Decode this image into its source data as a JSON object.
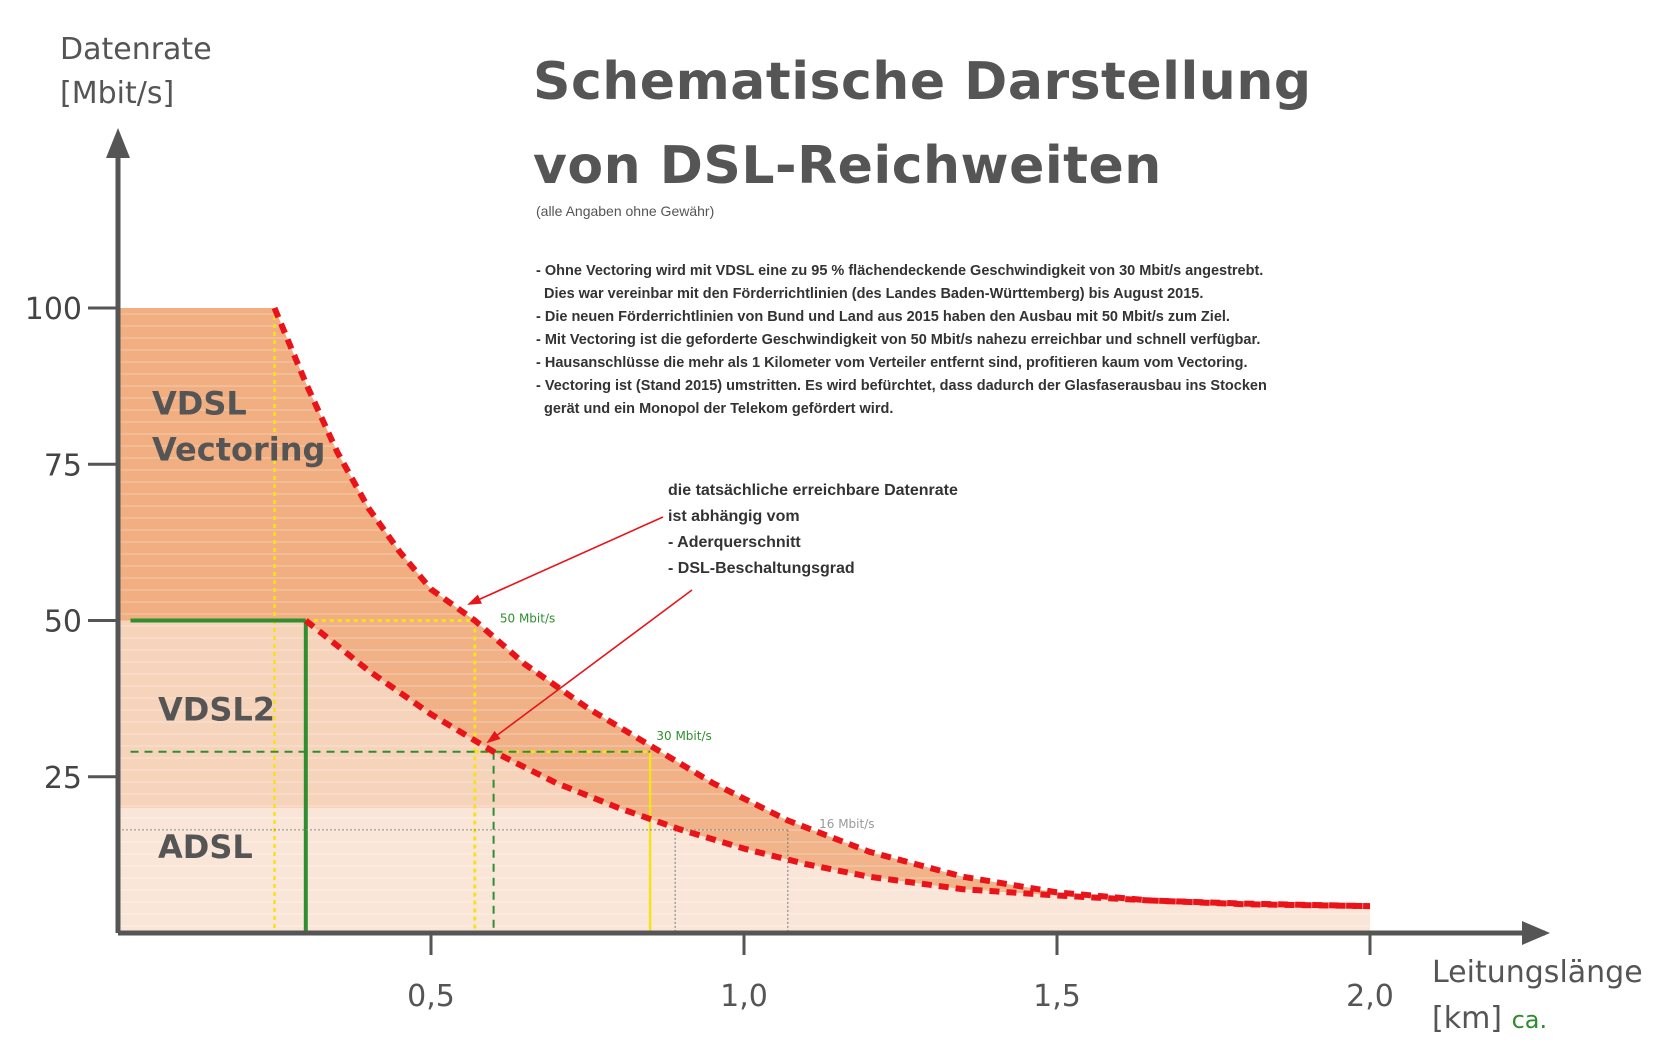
{
  "title_line1": "Schematische Darstellung",
  "title_line2": "von DSL-Reichweiten",
  "disclaimer": "(alle Angaben ohne Gewähr)",
  "notes": [
    "- Ohne Vectoring wird mit VDSL eine zu 95 % flächendeckende Geschwindigkeit von 30 Mbit/s angestrebt.",
    "  Dies war vereinbar mit den Förderrichtlinien (des Landes Baden-Württemberg) bis August 2015.",
    "- Die neuen Förderrichtlinien von Bund und Land aus 2015 haben den Ausbau mit 50 Mbit/s zum Ziel.",
    "- Mit Vectoring ist die geforderte Geschwindigkeit von 50 Mbit/s nahezu erreichbar und schnell verfügbar.",
    "- Hausanschlüsse die mehr als 1 Kilometer vom Verteiler entfernt sind, profitieren kaum vom Vectoring.",
    "- Vectoring ist (Stand 2015) umstritten. Es wird befürchtet, dass dadurch der Glasfaserausbau ins Stocken",
    "  gerät und ein Monopol der Telekom gefördert wird."
  ],
  "callout": [
    "die tatsächliche erreichbare Datenrate",
    "ist abhängig vom",
    "- Aderquerschnitt",
    "- DSL-Beschaltungsgrad"
  ],
  "y_axis_label_line1": "Datenrate",
  "y_axis_label_line2": "[Mbit/s]",
  "x_axis_label_line1": "Leitungslänge",
  "x_axis_label_line2": "[km]",
  "x_axis_label_suffix": "ca.",
  "chart_data": {
    "type": "area",
    "title": "Schematische Darstellung von DSL-Reichweiten",
    "xlabel": "Leitungslänge [km] ca.",
    "ylabel": "Datenrate [Mbit/s]",
    "xlim": [
      0,
      2.3
    ],
    "ylim": [
      0,
      110
    ],
    "x_ticks": [
      {
        "value": 0.5,
        "label": "0,5"
      },
      {
        "value": 1.0,
        "label": "1,0"
      },
      {
        "value": 1.5,
        "label": "1,5"
      },
      {
        "value": 2.0,
        "label": "2,0"
      }
    ],
    "y_ticks": [
      {
        "value": 25,
        "label": "25"
      },
      {
        "value": 50,
        "label": "50"
      },
      {
        "value": 75,
        "label": "75"
      },
      {
        "value": 100,
        "label": "100"
      }
    ],
    "bands": [
      {
        "label": "VDSL Vectoring",
        "label_lines": [
          "VDSL",
          "Vectoring"
        ],
        "from": 50,
        "to": 100,
        "color": "#f3bf9d"
      },
      {
        "label": "VDSL2",
        "from": 20,
        "to": 50,
        "color": "#f6d3bb"
      },
      {
        "label": "ADSL",
        "from": 0,
        "to": 20,
        "color": "#fae6d8"
      }
    ],
    "series": [
      {
        "name": "",
        "style": "dashed",
        "color": "#e8141a",
        "x": [
          0.25,
          0.3,
          0.35,
          0.4,
          0.45,
          0.5,
          0.57,
          0.65,
          0.75,
          0.85,
          0.95,
          1.07,
          1.2,
          1.35,
          1.5,
          1.65,
          1.8,
          2.0
        ],
        "y": [
          100,
          88,
          77,
          68,
          61,
          55,
          50,
          43,
          36,
          30,
          24,
          18,
          13,
          9,
          6.5,
          5.2,
          4.6,
          4.3
        ]
      },
      {
        "name": "",
        "style": "dashed",
        "color": "#e8141a",
        "x": [
          0.3,
          0.4,
          0.5,
          0.6,
          0.7,
          0.8,
          0.9,
          1.0,
          1.1,
          1.2,
          1.35,
          1.5,
          1.65,
          1.8,
          2.0
        ],
        "y": [
          50,
          42,
          35,
          29,
          24,
          20,
          16.5,
          13.5,
          11,
          9,
          7,
          6,
          5.2,
          4.7,
          4.3
        ]
      }
    ],
    "reference_lines": [
      {
        "label": "50 Mbit/s",
        "y": 50,
        "x_end": 0.57,
        "color": "#3a9a3a"
      },
      {
        "label": "30 Mbit/s",
        "y": 29,
        "x_end": 0.85,
        "color": "#3a9a3a"
      },
      {
        "label": "16 Mbit/s",
        "y": 16.5,
        "x_end": 1.07,
        "color": "#999999"
      }
    ],
    "grid": false
  }
}
